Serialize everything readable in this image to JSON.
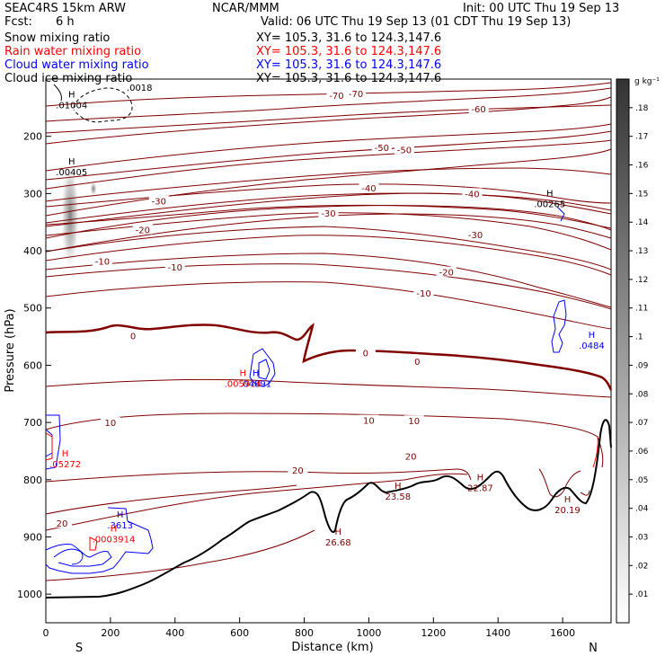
{
  "header": {
    "model": "SEAC4RS 15km ARW",
    "fcst_label": "Fcst:",
    "fcst_value": "6 h",
    "org": "NCAR/MMM",
    "init": "Init: 00 UTC Thu 19 Sep 13",
    "valid": "Valid: 06 UTC Thu 19 Sep 13 (01 CDT Thu 19 Sep 13)",
    "fields": [
      {
        "label": "Snow mixing ratio",
        "xy": "XY= 105.3, 31.6 to 124.3,147.6",
        "color": "#000000"
      },
      {
        "label": "Rain water mixing ratio",
        "xy": "XY= 105.3, 31.6 to 124.3,147.6",
        "color": "#ff0000"
      },
      {
        "label": "Cloud water mixing ratio",
        "xy": "XY= 105.3, 31.6 to 124.3,147.6",
        "color": "#0000ff"
      },
      {
        "label": "Cloud ice mixing ratio",
        "xy": "XY= 105.3, 31.6 to 124.3,147.6",
        "color": "#000000"
      }
    ]
  },
  "colorbar": {
    "unit": "g kg⁻¹",
    "ticks": [
      ".01",
      ".02",
      ".03",
      ".04",
      ".05",
      ".06",
      ".07",
      ".08",
      ".09",
      ".1",
      ".11",
      ".12",
      ".13",
      ".14",
      ".15",
      ".16",
      ".17",
      ".18"
    ]
  },
  "chart_data": {
    "type": "contour-cross-section",
    "xlabel": "Distance (km)",
    "ylabel": "Pressure (hPa)",
    "xlim": [
      0,
      1750
    ],
    "ylim": [
      1050,
      100
    ],
    "x_ticks": [
      "0",
      "200",
      "400",
      "600",
      "800",
      "1000",
      "1200",
      "1400",
      "1600"
    ],
    "y_ticks": [
      "1000",
      "900",
      "800",
      "700",
      "600",
      "500",
      "400",
      "300",
      "200"
    ],
    "end_labels": {
      "left": "S",
      "right": "N"
    },
    "isotherm_color": "#800000",
    "zero_isotherm_color": "#800000",
    "cloud_water_color": "#0000ff",
    "rain_color": "#ff0000",
    "isotherm_labels": [
      {
        "text": "-70",
        "x": 900,
        "p": 128
      },
      {
        "text": "-70",
        "x": 960,
        "p": 125
      },
      {
        "text": "-60",
        "x": 1340,
        "p": 152
      },
      {
        "text": "-50",
        "x": 1040,
        "p": 219
      },
      {
        "text": "-50",
        "x": 1110,
        "p": 223
      },
      {
        "text": "-40",
        "x": 1000,
        "p": 290
      },
      {
        "text": "-40",
        "x": 1320,
        "p": 300
      },
      {
        "text": "-30",
        "x": 350,
        "p": 313
      },
      {
        "text": "-30",
        "x": 875,
        "p": 334
      },
      {
        "text": "-30",
        "x": 1330,
        "p": 372
      },
      {
        "text": "-20",
        "x": 300,
        "p": 363
      },
      {
        "text": "-20",
        "x": 1240,
        "p": 437
      },
      {
        "text": "-10",
        "x": 175,
        "p": 418
      },
      {
        "text": "-10",
        "x": 400,
        "p": 428
      },
      {
        "text": "-10",
        "x": 1170,
        "p": 474
      },
      {
        "text": "0",
        "x": 270,
        "p": 548
      },
      {
        "text": "0",
        "x": 990,
        "p": 578
      },
      {
        "text": "0",
        "x": 1150,
        "p": 593
      },
      {
        "text": "10",
        "x": 200,
        "p": 700
      },
      {
        "text": "10",
        "x": 1000,
        "p": 696
      },
      {
        "text": "10",
        "x": 1140,
        "p": 697
      },
      {
        "text": "20",
        "x": 780,
        "p": 783
      },
      {
        "text": "20",
        "x": 1130,
        "p": 759
      },
      {
        "text": "20",
        "x": 50,
        "p": 876
      }
    ],
    "maxima": [
      {
        "text": ".01004",
        "x": 80,
        "p": 148,
        "color": "#000000"
      },
      {
        "text": ".00405",
        "x": 80,
        "p": 265,
        "color": "#000000"
      },
      {
        "text": ".00265",
        "x": 1560,
        "p": 321,
        "color": "#000000"
      },
      {
        "text": ".0484",
        "x": 1690,
        "p": 568,
        "color": "#0000ff"
      },
      {
        "text": ".04891",
        "x": 650,
        "p": 635,
        "color": "#0000ff"
      },
      {
        "text": ".005914",
        "x": 610,
        "p": 635,
        "color": "#ff0000"
      },
      {
        "text": ".05272",
        "x": 60,
        "p": 775,
        "color": "#ff0000"
      },
      {
        "text": ".3613",
        "x": 230,
        "p": 882,
        "color": "#0000ff"
      },
      {
        "text": ".0003914",
        "x": 210,
        "p": 906,
        "color": "#ff0000"
      },
      {
        "text": "26.68",
        "x": 905,
        "p": 912,
        "color": "#800000"
      },
      {
        "text": "23.58",
        "x": 1090,
        "p": 832,
        "color": "#800000"
      },
      {
        "text": "22.87",
        "x": 1345,
        "p": 817,
        "color": "#800000"
      },
      {
        "text": "20.19",
        "x": 1615,
        "p": 855,
        "color": "#800000"
      }
    ],
    "contour_labels": [
      {
        "text": ".0018",
        "x": 290,
        "p": 114,
        "color": "#000000"
      }
    ]
  }
}
